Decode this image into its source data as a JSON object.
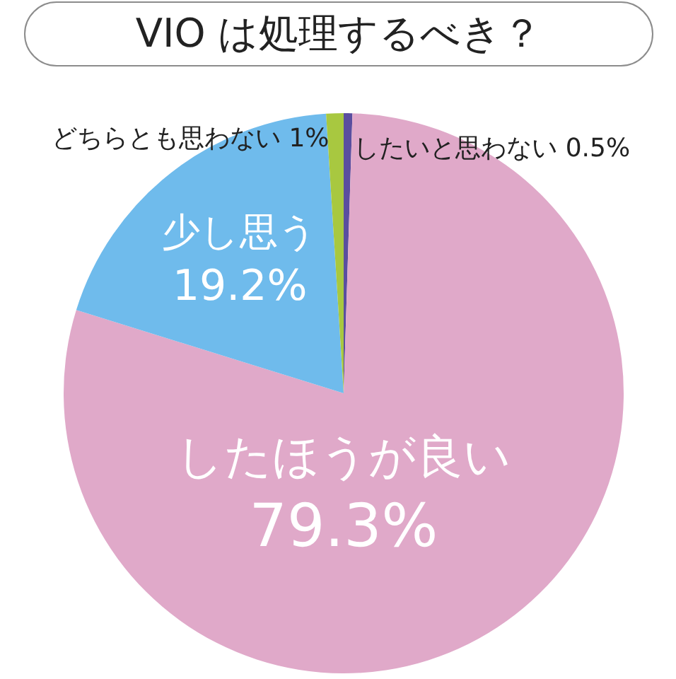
{
  "chart_data": {
    "type": "pie",
    "title": "VIO は処理するべき？",
    "categories": [
      "したいと思わない",
      "したほうが良い",
      "少し思う",
      "どちらとも思わない"
    ],
    "values": [
      0.5,
      79.3,
      19.2,
      1
    ],
    "colors": [
      "#5a4e9f",
      "#e0a9c9",
      "#6fbbec",
      "#a8c840"
    ],
    "value_labels": [
      "0.5%",
      "79.3%",
      "19.2%",
      "1%"
    ],
    "legend": false
  }
}
